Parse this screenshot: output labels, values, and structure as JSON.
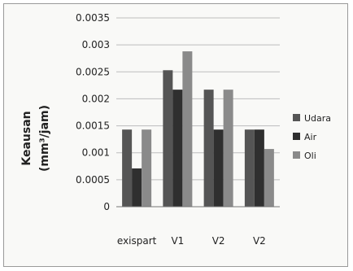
{
  "chart_data": {
    "type": "bar",
    "title": "",
    "ylabel_line1": "Keausan",
    "ylabel_line2": "(mm³/jam)",
    "xlabel": "",
    "categories": [
      "exispart",
      "V1",
      "V2",
      "V2"
    ],
    "ylim": [
      0,
      0.0035
    ],
    "yticks": [
      "0",
      "0.0005",
      "0.001",
      "0.0015",
      "0.002",
      "0.0025",
      "0.003",
      "0.0035"
    ],
    "ytick_values": [
      0,
      0.0005,
      0.001,
      0.0015,
      0.002,
      0.0025,
      0.003,
      0.0035
    ],
    "grid": true,
    "legend_position": "right",
    "series": [
      {
        "name": "Udara",
        "color": "#555555",
        "values": [
          0.00143,
          0.00253,
          0.00217,
          0.00143
        ]
      },
      {
        "name": "Air",
        "color": "#2f2f2f",
        "values": [
          0.00071,
          0.00217,
          0.00143,
          0.00143
        ]
      },
      {
        "name": "Oli",
        "color": "#8a8a8a",
        "values": [
          0.00143,
          0.00288,
          0.00217,
          0.00107
        ]
      }
    ]
  }
}
